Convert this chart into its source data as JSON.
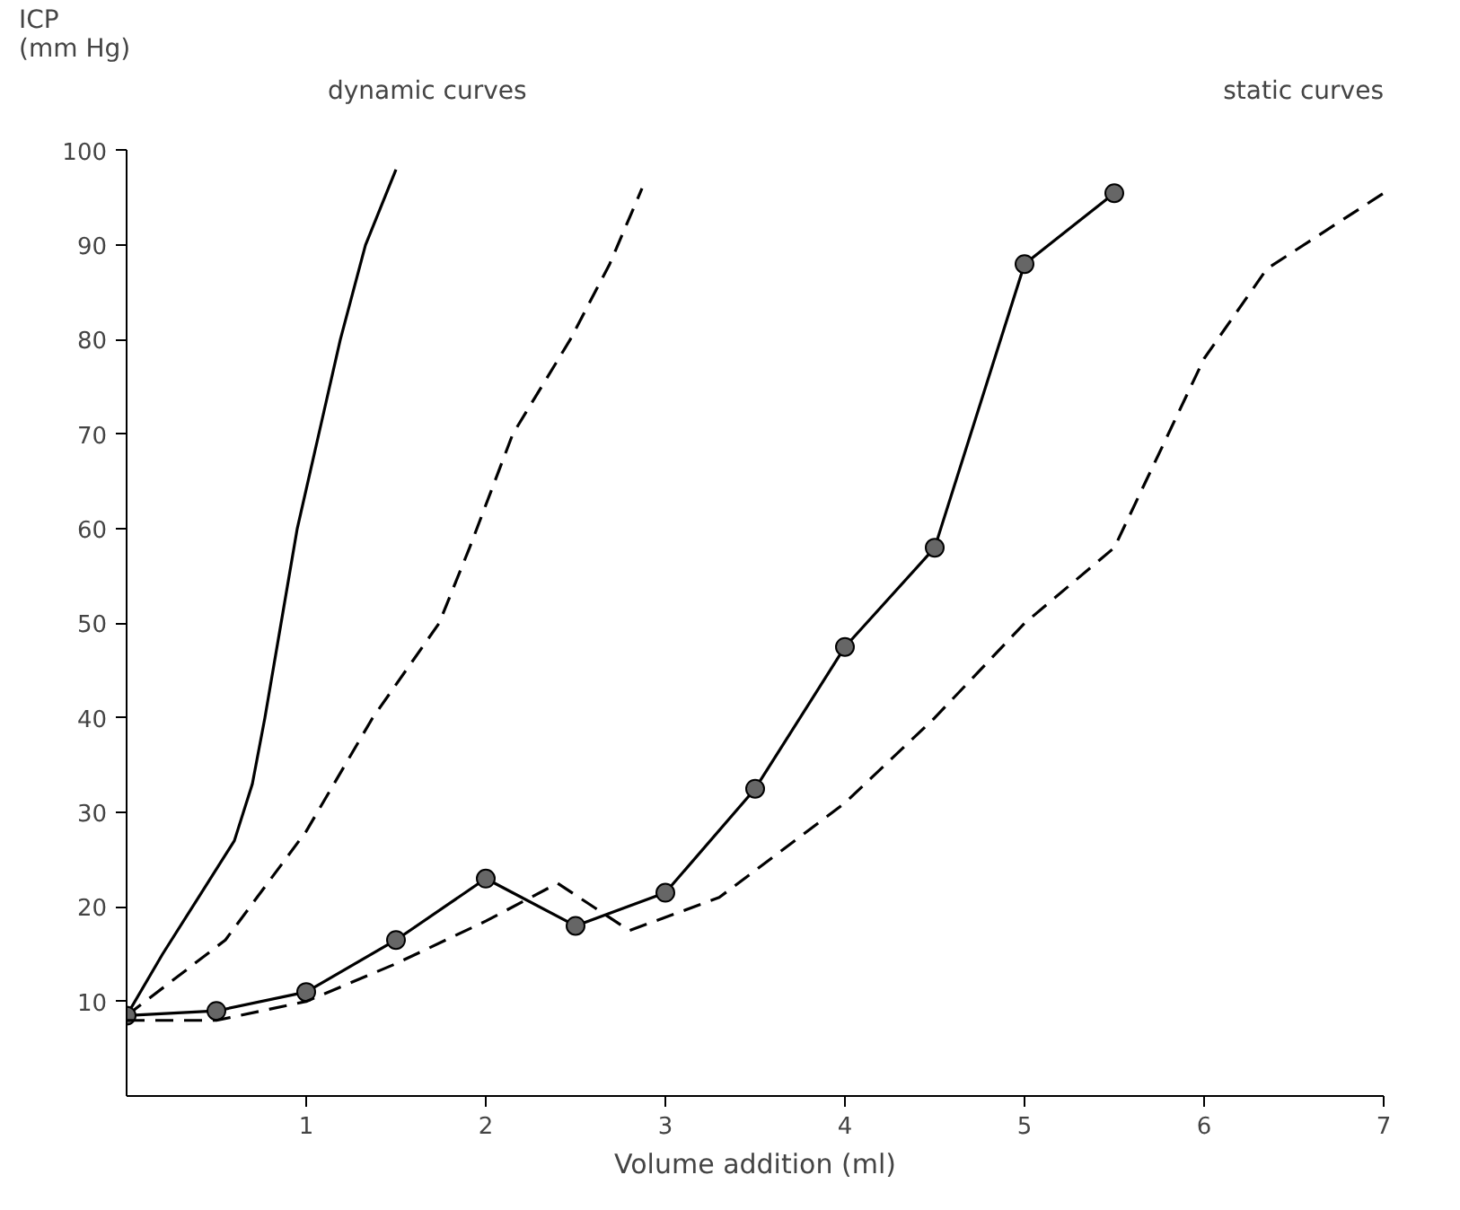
{
  "chart_data": {
    "type": "line",
    "xlabel": "Volume addition (ml)",
    "ylabel": "ICP\n(mm Hg)",
    "annotations": [
      "dynamic curves",
      "static curves"
    ],
    "xlim": [
      0,
      7
    ],
    "ylim": [
      0,
      100
    ],
    "xticks": [
      1,
      2,
      3,
      4,
      5,
      6,
      7
    ],
    "yticks": [
      10,
      20,
      30,
      40,
      50,
      60,
      70,
      80,
      90,
      100
    ],
    "grid": false,
    "series": [
      {
        "color": "#000000",
        "line_style": "solid",
        "marker": "none",
        "x": [
          0,
          0.2,
          0.4,
          0.6,
          0.7,
          0.77,
          0.86,
          0.95,
          1.07,
          1.19,
          1.33,
          1.5
        ],
        "values": [
          8.5,
          15,
          21,
          27,
          33,
          40,
          50,
          60,
          70,
          80,
          90,
          98
        ]
      },
      {
        "color": "#000000",
        "line_style": "dashed",
        "marker": "none",
        "x": [
          0,
          0.55,
          1.0,
          1.37,
          1.74,
          1.91,
          2.15,
          2.47,
          2.69,
          2.87
        ],
        "values": [
          8.5,
          16.5,
          28,
          40,
          50,
          58,
          70,
          80,
          88,
          96
        ]
      },
      {
        "color": "#000000",
        "line_style": "solid",
        "marker": "circle",
        "x": [
          0,
          0.5,
          1,
          1.5,
          2,
          2.5,
          3,
          3.5,
          4,
          4.5,
          5,
          5.5
        ],
        "values": [
          8.5,
          9,
          11,
          16.5,
          23,
          18,
          21.5,
          32.5,
          47.5,
          58,
          88,
          95.5
        ]
      },
      {
        "color": "#000000",
        "line_style": "dashed",
        "marker": "none",
        "x": [
          0,
          0.5,
          1,
          1.5,
          2,
          2.4,
          2.8,
          3.3,
          4,
          4.5,
          5,
          5.5,
          6,
          6.35,
          7
        ],
        "values": [
          8,
          8,
          10,
          14,
          18.5,
          22.5,
          17.5,
          21,
          31,
          40,
          50,
          58,
          78,
          87.5,
          95.5
        ]
      }
    ]
  }
}
